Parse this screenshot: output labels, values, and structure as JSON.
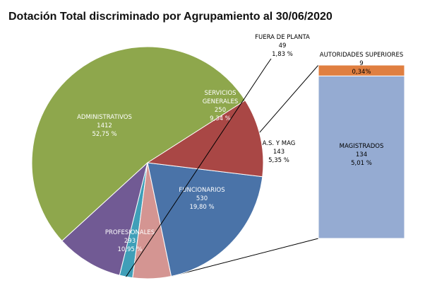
{
  "chart_data": {
    "type": "pie",
    "title": "Dotación Total discriminado por Agrupamiento al 30/06/2020",
    "slices": [
      {
        "name": "ADMINISTRATIVOS",
        "value": 1412,
        "pct": "52,75 %",
        "color": "#8ea74c"
      },
      {
        "name": "SERVICIOS GENERALES",
        "value": 250,
        "pct": "9,34 %",
        "color": "#715a94"
      },
      {
        "name": "FUERA DE PLANTA",
        "value": 49,
        "pct": "1,83 %",
        "color": "#3f9fb8"
      },
      {
        "name": "A.S. Y MAG",
        "value": 143,
        "pct": "5,35 %",
        "color": "#d49592"
      },
      {
        "name": "FUNCIONARIOS",
        "value": 530,
        "pct": "19,80 %",
        "color": "#4a73a8"
      },
      {
        "name": "PROFESIONALES",
        "value": 293,
        "pct": "10,95 %",
        "color": "#a94745"
      }
    ],
    "breakdown": {
      "of": "A.S. Y MAG",
      "parts": [
        {
          "name": "AUTORIDADES SUPERIORES",
          "value": 9,
          "pct": "0,34%",
          "color": "#e07f40"
        },
        {
          "name": "MAGISTRADOS",
          "value": 134,
          "pct": "5,01 %",
          "color": "#95abd2"
        }
      ]
    }
  }
}
